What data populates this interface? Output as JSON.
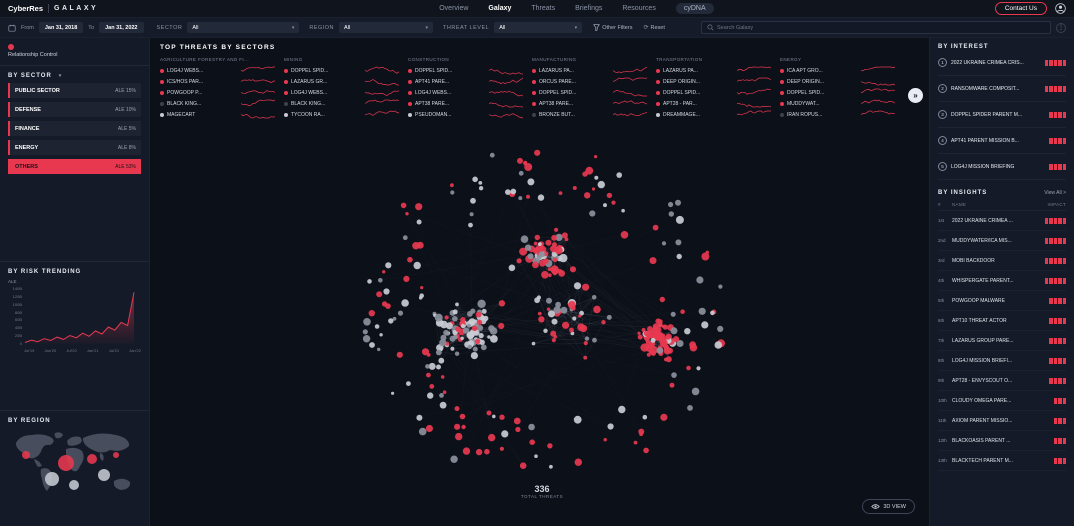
{
  "accent": "#e8384f",
  "icons": {
    "caret_down": "▾",
    "double_chevron_right": "»",
    "reset": "⟳",
    "more_options": "⋮"
  },
  "header": {
    "brand": "CyberRes",
    "product": "GALAXY",
    "nav": [
      {
        "label": "Overview",
        "active": false,
        "pill": false
      },
      {
        "label": "Galaxy",
        "active": true,
        "pill": false
      },
      {
        "label": "Threats",
        "active": false,
        "pill": false
      },
      {
        "label": "Briefings",
        "active": false,
        "pill": false
      },
      {
        "label": "Resources",
        "active": false,
        "pill": false
      },
      {
        "label": "cyDNA",
        "active": false,
        "pill": true
      }
    ],
    "contact_button": "Contact Us"
  },
  "filters": {
    "from_label": "From",
    "from_value": "Jan 31, 2018",
    "to_label": "To",
    "to_value": "Jan 31, 2022",
    "sector_label": "SECTOR",
    "sector_value": "All",
    "region_label": "REGION",
    "region_value": "All",
    "threat_label": "THREAT LEVEL",
    "threat_value": "All",
    "other_filters": "Other Filters",
    "reset": "Reset",
    "search_placeholder": "Search Galaxy"
  },
  "left": {
    "legend": "Relationship Control",
    "by_sector": {
      "title": "BY SECTOR",
      "rows": [
        {
          "name": "PUBLIC SECTOR",
          "ale": "ALE 15%",
          "highlight": false
        },
        {
          "name": "DEFENSE",
          "ale": "ALE 10%",
          "highlight": false
        },
        {
          "name": "FINANCE",
          "ale": "ALE 5%",
          "highlight": false
        },
        {
          "name": "ENERGY",
          "ale": "ALE 8%",
          "highlight": false
        },
        {
          "name": "OTHERS",
          "ale": "ALE 53%",
          "highlight": true
        }
      ]
    },
    "risk_title": "BY RISK TRENDING",
    "region": {
      "title": "BY REGION",
      "bubbles": [
        {
          "x": 18,
          "y": 26,
          "r": 4,
          "color": "red"
        },
        {
          "x": 58,
          "y": 34,
          "r": 8,
          "color": "red"
        },
        {
          "x": 44,
          "y": 50,
          "r": 7,
          "color": "gray"
        },
        {
          "x": 84,
          "y": 30,
          "r": 5,
          "color": "red"
        },
        {
          "x": 96,
          "y": 46,
          "r": 6,
          "color": "gray"
        },
        {
          "x": 66,
          "y": 56,
          "r": 5,
          "color": "gray"
        },
        {
          "x": 108,
          "y": 26,
          "r": 3,
          "color": "red"
        }
      ]
    }
  },
  "chart_data": {
    "type": "line",
    "title": "BY RISK TRENDING",
    "ylabel": "ALE",
    "yticks": [
      "140B",
      "120B",
      "100B",
      "80B",
      "60B",
      "40B",
      "20B",
      "0"
    ],
    "xticks": [
      "Jul'19",
      "Jan'20",
      "Jul'20",
      "Jan'21",
      "Jul'21",
      "Jan'22"
    ],
    "ymax": 140,
    "values": [
      4,
      10,
      6,
      14,
      9,
      18,
      12,
      22,
      16,
      28,
      20,
      34,
      26,
      44,
      36,
      56,
      48,
      134
    ]
  },
  "top_threats": {
    "title": "TOP THREATS BY SECTORS",
    "sectors": [
      {
        "name": "AGRICULTURE FORESTRY AND FI...",
        "threats": [
          {
            "name": "LOG4J WEBS...",
            "dot": "red"
          },
          {
            "name": "ICS/HOS PAR...",
            "dot": "red"
          },
          {
            "name": "POWGOOP P...",
            "dot": "red"
          },
          {
            "name": "BLACK KING...",
            "dot": "dark"
          },
          {
            "name": "MAGECART",
            "dot": "light"
          }
        ]
      },
      {
        "name": "MINING",
        "threats": [
          {
            "name": "DOPPEL SPID...",
            "dot": "red"
          },
          {
            "name": "LAZARUS GR...",
            "dot": "red"
          },
          {
            "name": "LOG4J WEBS...",
            "dot": "red"
          },
          {
            "name": "BLACK KING...",
            "dot": "dark"
          },
          {
            "name": "TYCOON RA...",
            "dot": "light"
          }
        ]
      },
      {
        "name": "CONSTRUCTION",
        "threats": [
          {
            "name": "DOPPEL SPID...",
            "dot": "red"
          },
          {
            "name": "APT41 PARE...",
            "dot": "red"
          },
          {
            "name": "LOG4J WEBS...",
            "dot": "red"
          },
          {
            "name": "APT38 PARE...",
            "dot": "red"
          },
          {
            "name": "PSEUDOMAN...",
            "dot": "light"
          }
        ]
      },
      {
        "name": "MANUFACTURING",
        "threats": [
          {
            "name": "LAZARUS PA...",
            "dot": "red"
          },
          {
            "name": "ORCUS PARE...",
            "dot": "red"
          },
          {
            "name": "DOPPEL SPID...",
            "dot": "red"
          },
          {
            "name": "APT38 PARE...",
            "dot": "red"
          },
          {
            "name": "BRONZE BUT...",
            "dot": "dark"
          }
        ]
      },
      {
        "name": "TRANSPORTATION",
        "threats": [
          {
            "name": "LAZARUS PA...",
            "dot": "red"
          },
          {
            "name": "DEEP ORIGIN...",
            "dot": "red"
          },
          {
            "name": "DOPPEL SPID...",
            "dot": "red"
          },
          {
            "name": "APT28 - PAR...",
            "dot": "red"
          },
          {
            "name": "DREAMMAGE...",
            "dot": "light"
          }
        ]
      },
      {
        "name": "ENERGY",
        "threats": [
          {
            "name": "ICA APT GRO...",
            "dot": "red"
          },
          {
            "name": "DEEP ORIGIN...",
            "dot": "red"
          },
          {
            "name": "DOPPEL SPID...",
            "dot": "red"
          },
          {
            "name": "MUDDYWAT...",
            "dot": "red"
          },
          {
            "name": "IRAN ROPUS...",
            "dot": "dark"
          }
        ]
      }
    ]
  },
  "graph": {
    "total_value": "336",
    "total_label": "TOTAL THREATS",
    "view3d_label": "3D VIEW",
    "seed": 1337,
    "node_colors": {
      "primary": "#e8384f",
      "secondary": "#c9ccd4",
      "tertiary": "#8b909c"
    }
  },
  "interest": {
    "title": "BY INTEREST",
    "items": [
      {
        "rank": "1",
        "name": "2022 UKRAINE CRIMEA CRIS...",
        "impact": 5
      },
      {
        "rank": "2",
        "name": "RANSOMWARE COMPOSIT...",
        "impact": 5
      },
      {
        "rank": "3",
        "name": "DOPPEL SPIDER PARENT M...",
        "impact": 4
      },
      {
        "rank": "4",
        "name": "APT41 PARENT MISSION B...",
        "impact": 4
      },
      {
        "rank": "5",
        "name": "LOG4J MISSION BRIEFING",
        "impact": 4
      }
    ]
  },
  "insights": {
    "title": "BY INSIGHTS",
    "view_all": "View All >",
    "col_rank": "#",
    "col_name": "NAME",
    "col_impact": "IMPACT",
    "rows": [
      {
        "rank": "1st",
        "name": "2022 UKRAINE CRIMEA ...",
        "impact": 5
      },
      {
        "rank": "2nd",
        "name": "MUDDYWATER/ICA MIS...",
        "impact": 5
      },
      {
        "rank": "3rd",
        "name": "MOBI BACKDOOR",
        "impact": 5
      },
      {
        "rank": "4th",
        "name": "WHISPERGATE PARENT...",
        "impact": 5
      },
      {
        "rank": "5th",
        "name": "POWGOOP MALWARE",
        "impact": 4
      },
      {
        "rank": "6th",
        "name": "APT10 THREAT ACTOR",
        "impact": 4
      },
      {
        "rank": "7th",
        "name": "LAZARUS GROUP PARE...",
        "impact": 4
      },
      {
        "rank": "8th",
        "name": "LOG4J MISSION BRIEFI...",
        "impact": 4
      },
      {
        "rank": "9th",
        "name": "APT28 - ENVYSCOUT O...",
        "impact": 4
      },
      {
        "rank": "10th",
        "name": "CLOUDY OMEGA PARE...",
        "impact": 3
      },
      {
        "rank": "11th",
        "name": "AXIOM PARENT MISSIO...",
        "impact": 3
      },
      {
        "rank": "12th",
        "name": "BLACKOASIS PARENT ...",
        "impact": 3
      },
      {
        "rank": "13th",
        "name": "BLACKTECH PARENT M...",
        "impact": 3
      }
    ]
  }
}
